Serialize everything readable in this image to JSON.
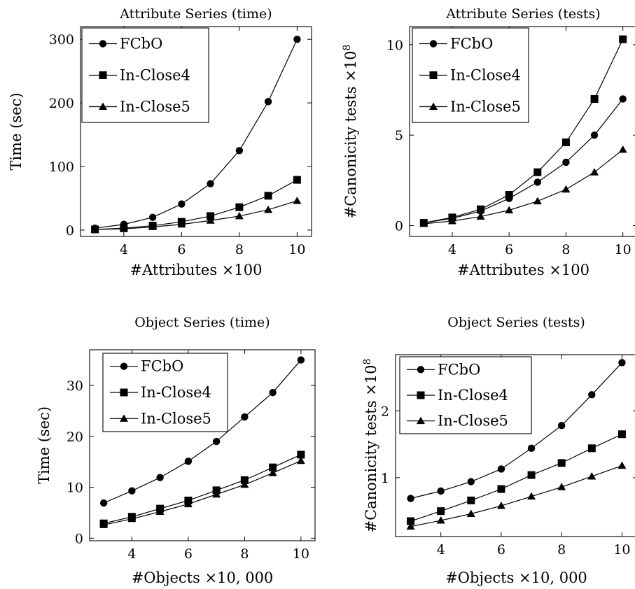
{
  "chart_data": [
    {
      "type": "line",
      "title": "Attribute Series (time)",
      "xlabel": "#Attributes ×100",
      "ylabel": "Time (sec)",
      "x": [
        3,
        4,
        5,
        6,
        7,
        8,
        9,
        10
      ],
      "xlim": [
        2.5,
        10.5
      ],
      "ylim": [
        -10,
        320
      ],
      "xticks": [
        4,
        6,
        8,
        10
      ],
      "yticks": [
        0,
        100,
        200,
        300
      ],
      "legend": "top-left",
      "grid": false,
      "series": [
        {
          "name": "FCbO",
          "marker": "circle",
          "values": [
            3,
            9,
            20,
            41,
            73,
            125,
            202,
            300
          ]
        },
        {
          "name": "In-Close4",
          "marker": "square",
          "values": [
            1,
            3,
            7,
            13,
            22,
            36,
            54,
            79
          ]
        },
        {
          "name": "In-Close5",
          "marker": "triangle",
          "values": [
            1,
            2,
            5,
            9,
            15,
            22,
            32,
            46
          ]
        }
      ]
    },
    {
      "type": "line",
      "title": "Attribute Series (tests)",
      "xlabel": "#Attributes ×100",
      "ylabel": "#Canonicity tests ×10",
      "ylabel_exponent": "8",
      "x": [
        3,
        4,
        5,
        6,
        7,
        8,
        9,
        10
      ],
      "xlim": [
        2.5,
        10.5
      ],
      "ylim": [
        -0.6,
        11
      ],
      "xticks": [
        4,
        6,
        8,
        10
      ],
      "yticks": [
        0,
        5,
        10
      ],
      "legend": "top-left",
      "grid": false,
      "series": [
        {
          "name": "FCbO",
          "marker": "circle",
          "values": [
            0.15,
            0.4,
            0.8,
            1.5,
            2.4,
            3.5,
            5.0,
            7.0
          ]
        },
        {
          "name": "In-Close4",
          "marker": "square",
          "values": [
            0.15,
            0.45,
            0.9,
            1.7,
            2.95,
            4.6,
            7.0,
            10.3
          ]
        },
        {
          "name": "In-Close5",
          "marker": "triangle",
          "values": [
            0.1,
            0.25,
            0.5,
            0.85,
            1.35,
            2.0,
            2.95,
            4.2
          ]
        }
      ]
    },
    {
      "type": "line",
      "title": "Object Series (time)",
      "xlabel": "#Objects ×10, 000",
      "ylabel": "Time (sec)",
      "x": [
        3,
        4,
        5,
        6,
        7,
        8,
        9,
        10
      ],
      "xlim": [
        2.5,
        10.5
      ],
      "ylim": [
        -0.5,
        37
      ],
      "xticks": [
        4,
        6,
        8,
        10
      ],
      "yticks": [
        0,
        10,
        20,
        30
      ],
      "legend": "top-left",
      "grid": false,
      "series": [
        {
          "name": "FCbO",
          "marker": "circle",
          "values": [
            6.9,
            9.3,
            11.9,
            15.1,
            19.0,
            23.8,
            28.6,
            35.0
          ]
        },
        {
          "name": "In-Close4",
          "marker": "square",
          "values": [
            2.9,
            4.2,
            5.8,
            7.4,
            9.4,
            11.4,
            13.9,
            16.4
          ]
        },
        {
          "name": "In-Close5",
          "marker": "triangle",
          "values": [
            2.6,
            3.8,
            5.2,
            6.7,
            8.6,
            10.5,
            12.8,
            15.2
          ]
        }
      ]
    },
    {
      "type": "line",
      "title": "Object Series (tests)",
      "xlabel": "#Objects ×10, 000",
      "ylabel": "#Canonicity tests ×10",
      "ylabel_exponent": "8",
      "x": [
        3,
        4,
        5,
        6,
        7,
        8,
        9,
        10
      ],
      "xlim": [
        2.5,
        10.5
      ],
      "ylim": [
        0.12,
        2.84
      ],
      "xticks": [
        4,
        6,
        8,
        10
      ],
      "yticks": [
        1,
        2
      ],
      "legend": "top-left",
      "grid": false,
      "series": [
        {
          "name": "FCbO",
          "marker": "circle",
          "values": [
            0.69,
            0.8,
            0.94,
            1.13,
            1.44,
            1.78,
            2.24,
            2.72
          ]
        },
        {
          "name": "In-Close4",
          "marker": "square",
          "values": [
            0.35,
            0.5,
            0.66,
            0.83,
            1.04,
            1.22,
            1.44,
            1.65
          ]
        },
        {
          "name": "In-Close5",
          "marker": "triangle",
          "values": [
            0.27,
            0.36,
            0.46,
            0.58,
            0.72,
            0.86,
            1.02,
            1.18
          ]
        }
      ]
    }
  ]
}
